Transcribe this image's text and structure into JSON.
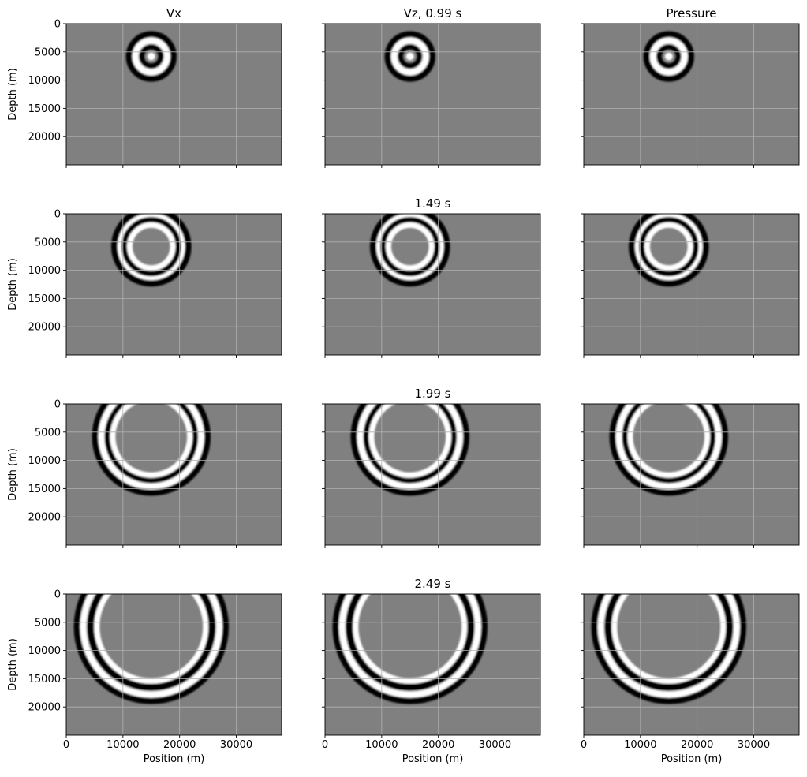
{
  "figure": {
    "background": "#ffffff",
    "panel_fill": "#808080",
    "wave_light": "#ffffff",
    "wave_dark": "#000000",
    "grid_color": "#b0b0b0"
  },
  "chart_data": {
    "type": "heatmap",
    "layout": {
      "rows": 4,
      "cols": 3
    },
    "column_titles": [
      "Vx",
      "Vz, 0.99 s",
      "Pressure"
    ],
    "row_times": [
      "0.99 s",
      "1.49 s",
      "1.99 s",
      "2.49 s"
    ],
    "row_titles": [
      "",
      "1.49 s",
      "1.99 s",
      "2.49 s"
    ],
    "xlabel": "Position (m)",
    "ylabel": "Depth (m)",
    "xlim": [
      0,
      38000
    ],
    "ylim": [
      25000,
      0
    ],
    "xticks": [
      0,
      10000,
      20000,
      30000
    ],
    "yticks": [
      0,
      5000,
      10000,
      15000,
      20000
    ],
    "source_position": [
      15000,
      5800
    ],
    "grid": true,
    "colormap": "gray",
    "panels": [
      {
        "row": 0,
        "col": 0,
        "field": "Vx",
        "time_s": 0.99,
        "wavefront_radii": [
          2800
        ]
      },
      {
        "row": 0,
        "col": 1,
        "field": "Vz",
        "time_s": 0.99,
        "wavefront_radii": [
          2800
        ]
      },
      {
        "row": 0,
        "col": 2,
        "field": "Pressure",
        "time_s": 0.99,
        "wavefront_radii": [
          2800
        ]
      },
      {
        "row": 1,
        "col": 0,
        "field": "Vx",
        "time_s": 1.49,
        "wavefront_radii": [
          5400,
          3800
        ]
      },
      {
        "row": 1,
        "col": 1,
        "field": "Vz",
        "time_s": 1.49,
        "wavefront_radii": [
          5400,
          3800
        ]
      },
      {
        "row": 1,
        "col": 2,
        "field": "Pressure",
        "time_s": 1.49,
        "wavefront_radii": [
          5400,
          3800
        ]
      },
      {
        "row": 2,
        "col": 0,
        "field": "Vx",
        "time_s": 1.99,
        "wavefront_radii": [
          8800,
          6800
        ]
      },
      {
        "row": 2,
        "col": 1,
        "field": "Vz",
        "time_s": 1.99,
        "wavefront_radii": [
          8800,
          6800
        ]
      },
      {
        "row": 2,
        "col": 2,
        "field": "Pressure",
        "time_s": 1.99,
        "wavefront_radii": [
          8800,
          6800
        ]
      },
      {
        "row": 3,
        "col": 0,
        "field": "Vx",
        "time_s": 2.49,
        "wavefront_radii": [
          12000,
          9600
        ]
      },
      {
        "row": 3,
        "col": 1,
        "field": "Vz",
        "time_s": 2.49,
        "wavefront_radii": [
          12000,
          9600
        ]
      },
      {
        "row": 3,
        "col": 2,
        "field": "Pressure",
        "time_s": 2.49,
        "wavefront_radii": [
          12000,
          9600
        ]
      }
    ]
  }
}
